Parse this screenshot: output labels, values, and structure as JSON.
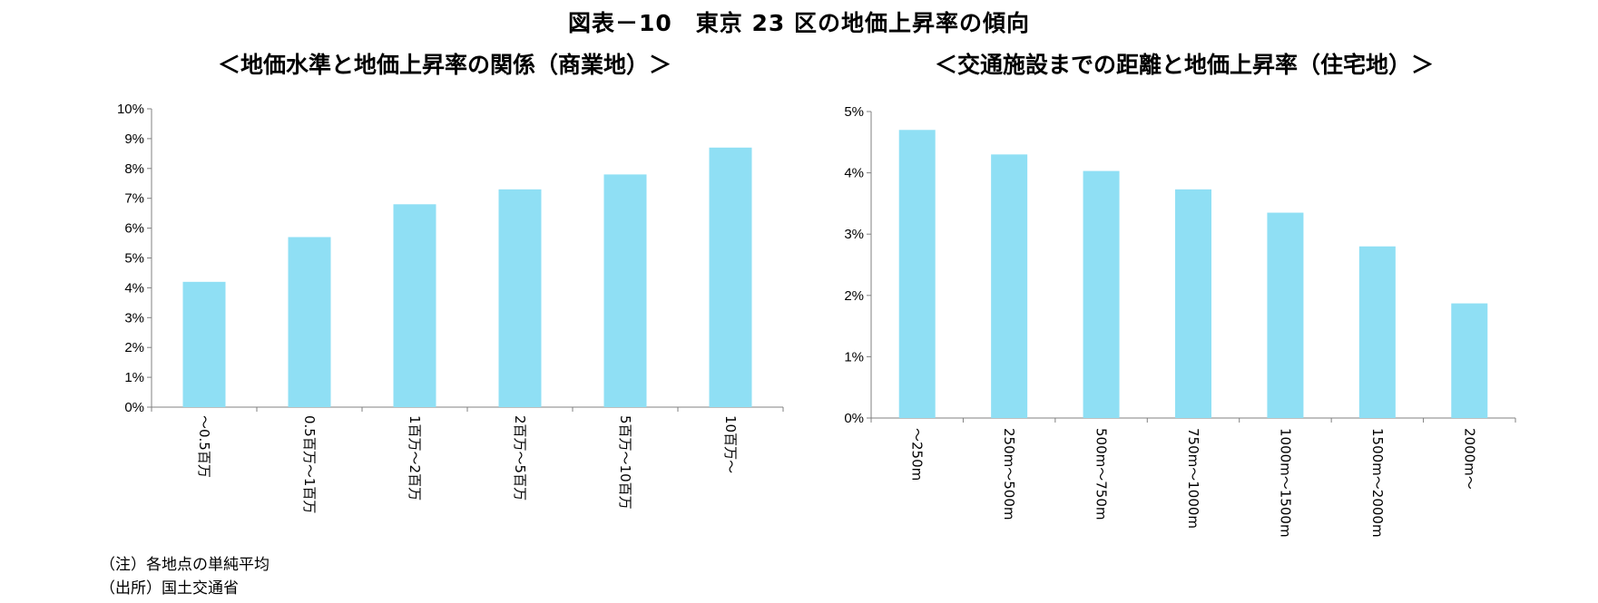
{
  "figure": {
    "title": "図表－10　東京 23 区の地価上昇率の傾向",
    "note": "（注）各地点の単純平均",
    "source": "（出所）国土交通省"
  },
  "chart_data": [
    {
      "type": "bar",
      "title": "＜地価水準と地価上昇率の関係（商業地）＞",
      "categories": [
        "～0.5百万",
        "0.5百万～1百万",
        "1百万～2百万",
        "2百万～5百万",
        "5百万～10百万",
        "10百万～"
      ],
      "values": [
        4.2,
        5.7,
        6.8,
        7.3,
        7.8,
        8.7
      ],
      "ylim": [
        0,
        10
      ],
      "yticks": [
        0,
        1,
        2,
        3,
        4,
        5,
        6,
        7,
        8,
        9,
        10
      ],
      "ytick_suffix": "%",
      "bar_color": "#8fdff4",
      "grid": false
    },
    {
      "type": "bar",
      "title": "＜交通施設までの距離と地価上昇率（住宅地）＞",
      "categories": [
        "～250m",
        "250m～500m",
        "500m～750m",
        "750m～1000m",
        "1000m～1500m",
        "1500m～2000m",
        "2000m～"
      ],
      "values": [
        4.7,
        4.3,
        4.03,
        3.73,
        3.35,
        2.8,
        1.87
      ],
      "ylim": [
        0,
        5
      ],
      "yticks": [
        0,
        1,
        2,
        3,
        4,
        5
      ],
      "ytick_suffix": "%",
      "bar_color": "#8fdff4",
      "grid": false
    }
  ]
}
